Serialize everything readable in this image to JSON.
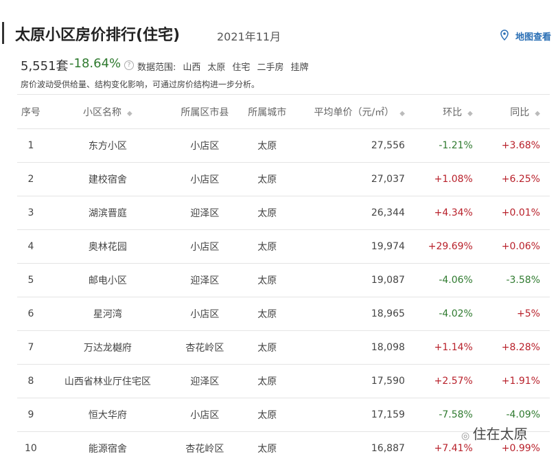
{
  "header": {
    "title": "太原小区房价排行(住宅)",
    "date": "2021年11月",
    "map_link": "地图查看"
  },
  "summary": {
    "count": "5,551套",
    "change": "-18.64%",
    "scope_label": "数据范围:",
    "scope": [
      "山西",
      "太原",
      "住宅",
      "二手房",
      "挂牌"
    ],
    "note": "房价波动受供给量、结构变化影响，可通过房价结构进一步分析。"
  },
  "table": {
    "columns": [
      "序号",
      "小区名称",
      "所属区市县",
      "所属城市",
      "平均单价（元/㎡）",
      "环比",
      "同比"
    ],
    "rows": [
      [
        "1",
        "东方小区",
        "小店区",
        "太原",
        "27,556",
        "-1.21%",
        "+3.68%"
      ],
      [
        "2",
        "建校宿舍",
        "小店区",
        "太原",
        "27,037",
        "+1.08%",
        "+6.25%"
      ],
      [
        "3",
        "湖滨晋庭",
        "迎泽区",
        "太原",
        "26,344",
        "+4.34%",
        "+0.01%"
      ],
      [
        "4",
        "奥林花园",
        "小店区",
        "太原",
        "19,974",
        "+29.69%",
        "+0.06%"
      ],
      [
        "5",
        "邮电小区",
        "迎泽区",
        "太原",
        "19,087",
        "-4.06%",
        "-3.58%"
      ],
      [
        "6",
        "星河湾",
        "小店区",
        "太原",
        "18,965",
        "-4.02%",
        "+5%"
      ],
      [
        "7",
        "万达龙樾府",
        "杏花岭区",
        "太原",
        "18,098",
        "+1.14%",
        "+8.28%"
      ],
      [
        "8",
        "山西省林业厅住宅区",
        "迎泽区",
        "太原",
        "17,590",
        "+2.57%",
        "+1.91%"
      ],
      [
        "9",
        "恒大华府",
        "小店区",
        "太原",
        "17,159",
        "-7.58%",
        "-4.09%"
      ],
      [
        "10",
        "能源宿舍",
        "杏花岭区",
        "太原",
        "16,887",
        "+7.41%",
        "+0.99%"
      ]
    ]
  },
  "watermark": "住在太原"
}
